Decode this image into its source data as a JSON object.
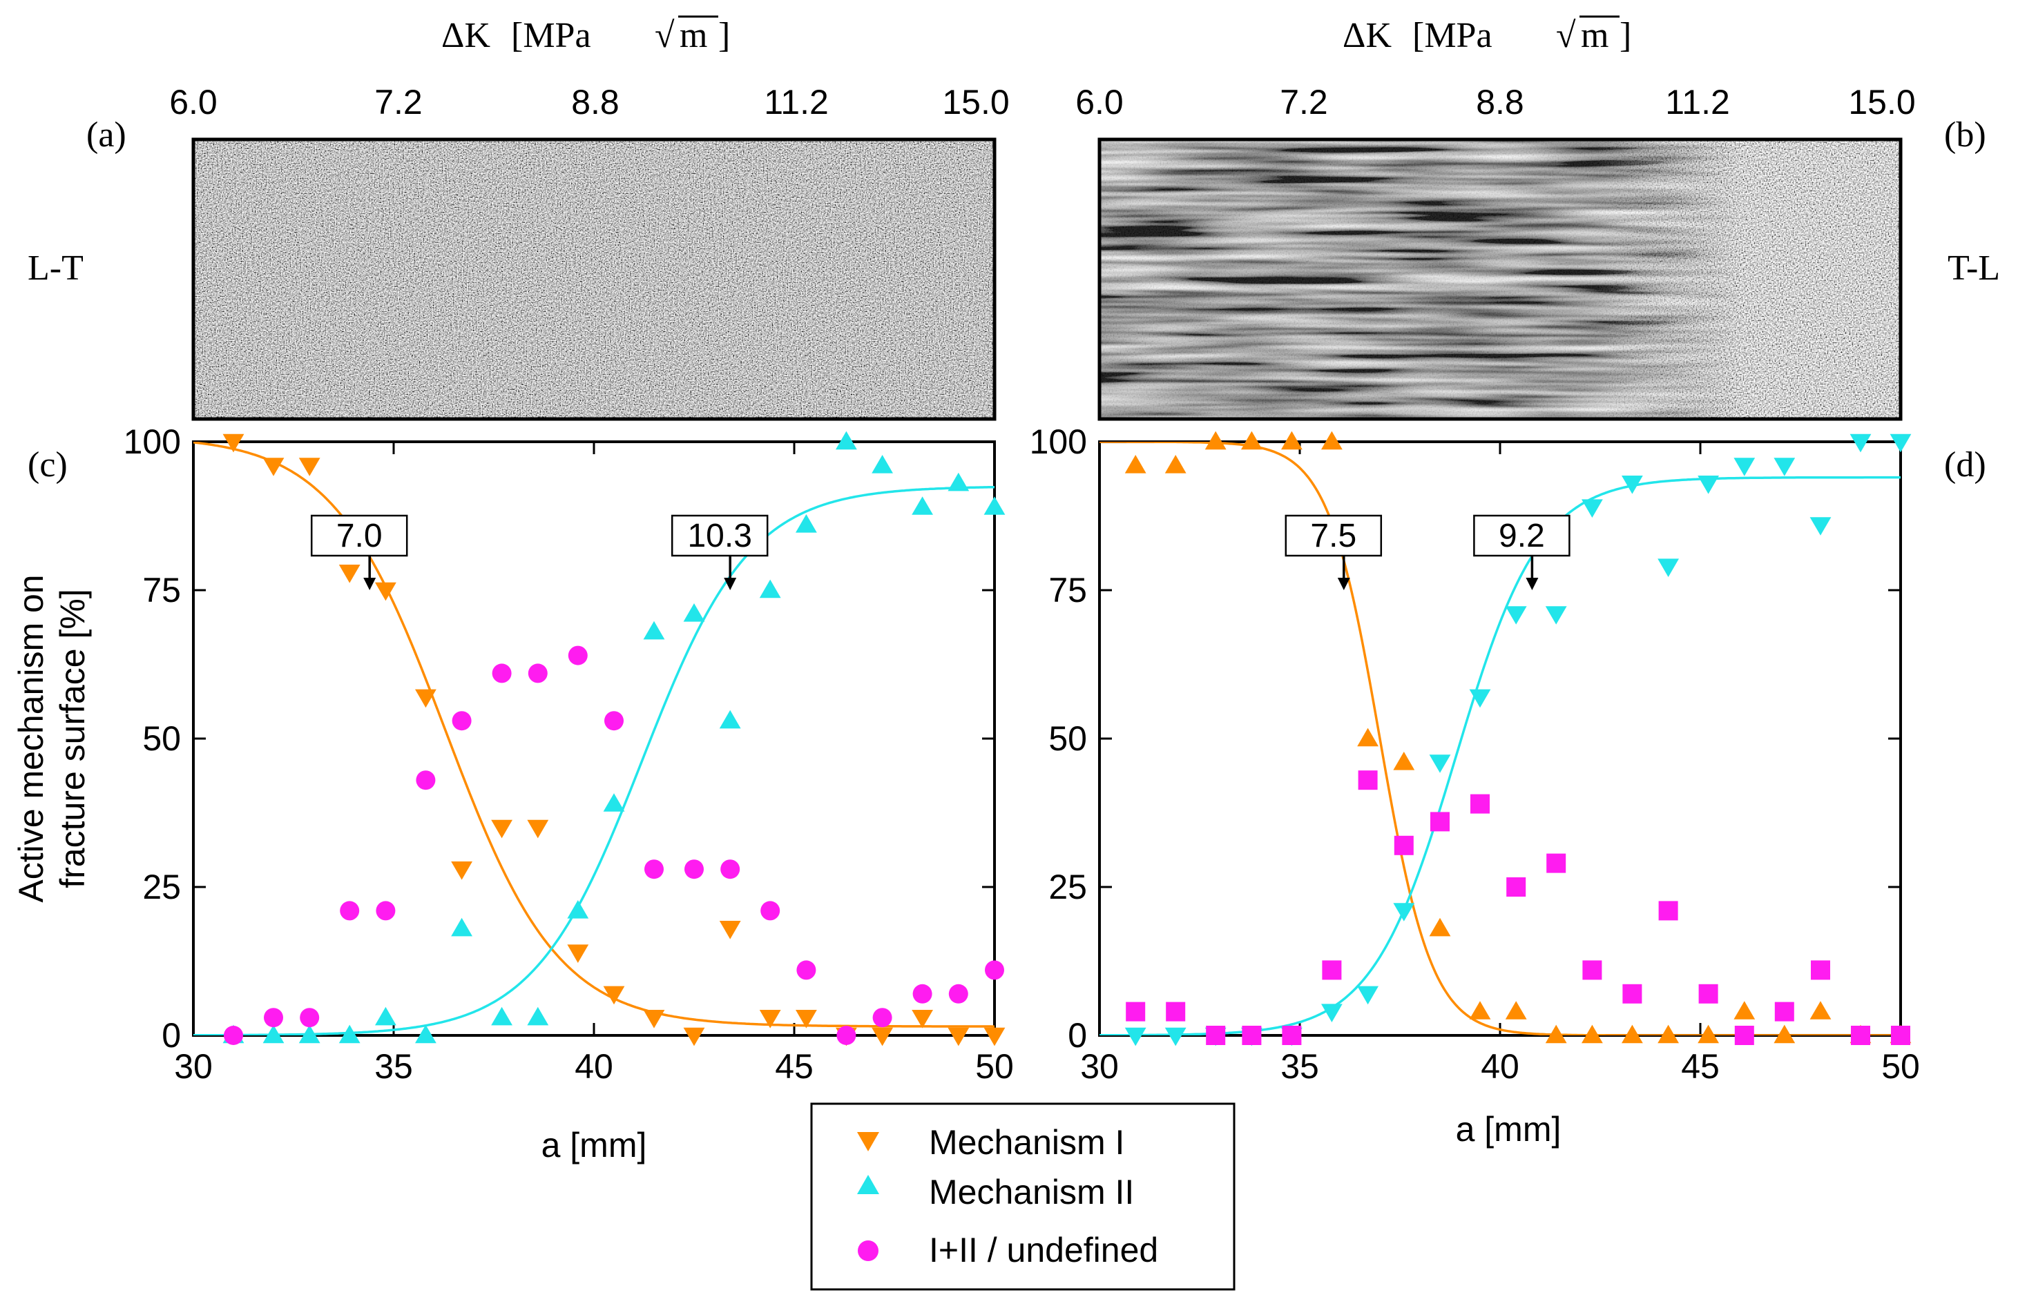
{
  "figure": {
    "top_axis_title": "ΔK",
    "top_axis_unit_left": "[MPa",
    "top_axis_unit_sqrt": "√",
    "top_axis_unit_m": "m",
    "top_axis_unit_right": "]",
    "top_ticks": [
      "6.0",
      "7.2",
      "8.8",
      "11.2",
      "15.0"
    ],
    "panel_a_label": "(a)",
    "panel_b_label": "(b)",
    "panel_c_label": "(c)",
    "panel_d_label": "(d)",
    "orientation_left": "L-T",
    "orientation_right": "T-L",
    "y_label_line1": "Active mechanism on",
    "y_label_line2": "fracture surface  [%]",
    "x_label": "a [mm]",
    "legend": [
      "Mechanism I",
      "Mechanism II",
      "I+II / undefined"
    ],
    "micrograph_a": "fractograph-LT",
    "micrograph_b": "fractograph-TL"
  },
  "colors": {
    "mech1": "#ff8c00",
    "mech2": "#22e5ea",
    "undefined": "#ff1cf0",
    "fit1": "#ff8c00",
    "fit2": "#22e5ea"
  },
  "chart_data": [
    {
      "type": "scatter",
      "panel": "c",
      "title": "L-T",
      "xlabel": "a [mm]",
      "ylabel": "Active mechanism on fracture surface [%]",
      "xlim": [
        30,
        50
      ],
      "ylim": [
        0,
        100
      ],
      "xticks": [
        30,
        35,
        40,
        45,
        50
      ],
      "yticks": [
        0,
        25,
        50,
        75,
        100
      ],
      "series": [
        {
          "name": "Mechanism I",
          "marker": "triangle-down",
          "color": "#ff8c00",
          "x": [
            31.0,
            32.0,
            32.9,
            33.9,
            34.8,
            35.8,
            36.7,
            37.7,
            38.6,
            39.6,
            40.5,
            41.5,
            42.5,
            43.4,
            44.4,
            45.3,
            46.3,
            47.2,
            48.2,
            49.1,
            50.0
          ],
          "y": [
            100,
            96,
            96,
            78,
            75,
            57,
            28,
            35,
            35,
            14,
            7,
            3,
            0,
            18,
            3,
            3,
            0,
            0,
            3,
            0,
            0
          ]
        },
        {
          "name": "Mechanism II",
          "marker": "triangle-up",
          "color": "#22e5ea",
          "x": [
            31.0,
            32.0,
            32.9,
            33.9,
            34.8,
            35.8,
            36.7,
            37.7,
            38.6,
            39.6,
            40.5,
            41.5,
            42.5,
            43.4,
            44.4,
            45.3,
            46.3,
            47.2,
            48.2,
            49.1,
            50.0
          ],
          "y": [
            0,
            0,
            0,
            0,
            3,
            0,
            18,
            3,
            3,
            21,
            39,
            68,
            71,
            53,
            75,
            86,
            100,
            96,
            89,
            93,
            89
          ]
        },
        {
          "name": "I+II / undefined",
          "marker": "circle",
          "color": "#ff1cf0",
          "x": [
            31.0,
            32.0,
            32.9,
            33.9,
            34.8,
            35.8,
            36.7,
            37.7,
            38.6,
            39.6,
            40.5,
            41.5,
            42.5,
            43.4,
            44.4,
            45.3,
            46.3,
            47.2,
            48.2,
            49.1,
            50.0
          ],
          "y": [
            0,
            3,
            3,
            21,
            21,
            43,
            53,
            61,
            61,
            64,
            53,
            28,
            28,
            28,
            21,
            11,
            0,
            3,
            7,
            7,
            11
          ]
        }
      ],
      "fits": [
        {
          "name": "Mechanism I fit",
          "color": "#ff8c00",
          "type": "sigmoid-decreasing",
          "top": 101,
          "bottom": 1.5,
          "x0": 36.3,
          "width": 1.4
        },
        {
          "name": "Mechanism II fit",
          "color": "#22e5ea",
          "type": "sigmoid-increasing",
          "top": 92.5,
          "bottom": 0,
          "x0": 41.2,
          "width": 1.35
        }
      ],
      "annotations": [
        {
          "text": "7.0",
          "x": 34.4,
          "y": 75
        },
        {
          "text": "10.3",
          "x": 43.4,
          "y": 75
        }
      ]
    },
    {
      "type": "scatter",
      "panel": "d",
      "title": "T-L",
      "xlabel": "a [mm]",
      "ylabel": "",
      "xlim": [
        30,
        50
      ],
      "ylim": [
        0,
        100
      ],
      "xticks": [
        30,
        35,
        40,
        45,
        50
      ],
      "yticks": [
        0,
        25,
        50,
        75,
        100
      ],
      "series": [
        {
          "name": "Mechanism I",
          "marker": "triangle-up",
          "color": "#ff8c00",
          "x": [
            30.9,
            31.9,
            32.9,
            33.8,
            34.8,
            35.8,
            36.7,
            37.6,
            38.5,
            39.5,
            40.4,
            41.4,
            42.3,
            43.3,
            44.2,
            45.2,
            46.1,
            47.1,
            48.0,
            49.0,
            50.0
          ],
          "y": [
            96,
            96,
            100,
            100,
            100,
            100,
            50,
            46,
            18,
            4,
            4,
            0,
            0,
            0,
            0,
            0,
            4,
            0,
            4,
            0,
            0
          ]
        },
        {
          "name": "Mechanism II",
          "marker": "triangle-down",
          "color": "#22e5ea",
          "x": [
            30.9,
            31.9,
            32.9,
            33.8,
            34.8,
            35.8,
            36.7,
            37.6,
            38.5,
            39.5,
            40.4,
            41.4,
            42.3,
            43.3,
            44.2,
            45.2,
            46.1,
            47.1,
            48.0,
            49.0,
            50.0
          ],
          "y": [
            0,
            0,
            0,
            0,
            0,
            4,
            7,
            21,
            46,
            57,
            71,
            71,
            89,
            93,
            79,
            93,
            96,
            96,
            86,
            100,
            100
          ]
        },
        {
          "name": "I+II / undefined",
          "marker": "square",
          "color": "#ff1cf0",
          "x": [
            30.9,
            31.9,
            32.9,
            33.8,
            34.8,
            35.8,
            36.7,
            37.6,
            38.5,
            39.5,
            40.4,
            41.4,
            42.3,
            43.3,
            44.2,
            45.2,
            46.1,
            47.1,
            48.0,
            49.0,
            50.0
          ],
          "y": [
            4,
            4,
            0,
            0,
            0,
            11,
            43,
            32,
            36,
            39,
            25,
            29,
            11,
            7,
            21,
            7,
            0,
            4,
            11,
            0,
            0
          ]
        }
      ],
      "fits": [
        {
          "name": "Mechanism I fit",
          "color": "#ff8c00",
          "type": "sigmoid-decreasing",
          "top": 100,
          "bottom": 0,
          "x0": 37.0,
          "width": 0.65
        },
        {
          "name": "Mechanism II fit",
          "color": "#22e5ea",
          "type": "sigmoid-increasing",
          "top": 94,
          "bottom": 0,
          "x0": 38.9,
          "width": 1.05
        }
      ],
      "annotations": [
        {
          "text": "7.5",
          "x": 36.1,
          "y": 75
        },
        {
          "text": "9.2",
          "x": 40.8,
          "y": 75
        }
      ]
    }
  ]
}
